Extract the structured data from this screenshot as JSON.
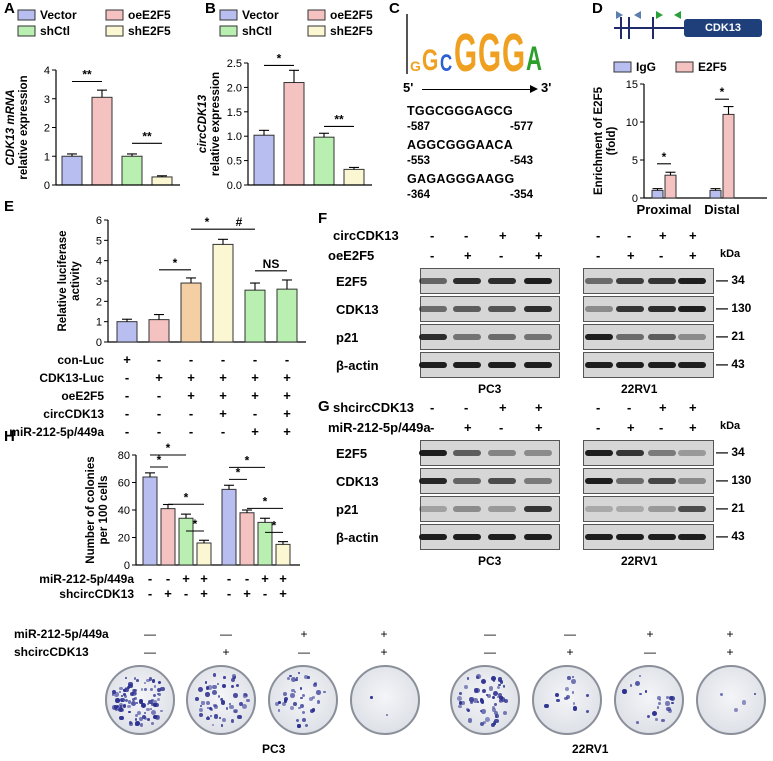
{
  "colors": {
    "vector": "#b8bff0",
    "oe": "#f5c2c2",
    "shctl": "#b9efb0",
    "she2f5": "#fbf7d2",
    "igg": "#b8bff0",
    "e2f5": "#f5c2c2",
    "pale": "#fbf7d2"
  },
  "panels": {
    "a": "A",
    "b": "B",
    "c": "C",
    "d": "D",
    "e": "E",
    "f": "F",
    "g": "G",
    "h": "H"
  },
  "legendAB": [
    "Vector",
    "oeE2F5",
    "shCtl",
    "shE2F5"
  ],
  "chart_data": [
    {
      "id": "A",
      "type": "bar",
      "ylabel": "CDK13 mRNA relative expression",
      "ylabel1": "CDK13 mRNA",
      "ylabel2": "relative expression",
      "categories": [
        "Vector",
        "oeE2F5",
        "shCtl",
        "shE2F5"
      ],
      "values": [
        1.0,
        3.05,
        1.0,
        0.28
      ],
      "errors": [
        0.08,
        0.25,
        0.08,
        0.04
      ],
      "ylim": [
        0,
        4
      ],
      "yticks": [
        "0",
        "1",
        "2",
        "3",
        "4"
      ],
      "sig": [
        "**",
        "**"
      ]
    },
    {
      "id": "B",
      "type": "bar",
      "ylabel": "circCDK13 relative expression",
      "ylabel1": "circCDK13",
      "ylabel2": "relative expression",
      "categories": [
        "Vector",
        "oeE2F5",
        "shCtl",
        "shE2F5"
      ],
      "values": [
        1.02,
        2.1,
        0.98,
        0.32
      ],
      "errors": [
        0.1,
        0.25,
        0.08,
        0.04
      ],
      "ylim": [
        0,
        2.5
      ],
      "yticks": [
        "0.0",
        "0.5",
        "1.0",
        "1.5",
        "2.0",
        "2.5"
      ],
      "sig": [
        "*",
        "**"
      ]
    },
    {
      "id": "D",
      "type": "bar",
      "ylabel": "Enrichment of E2F5 (fold)",
      "ylabel1": "Enrichment of  E2F5",
      "ylabel2": "(fold)",
      "categories": [
        "Proximal",
        "Distal"
      ],
      "series": [
        {
          "name": "IgG",
          "values": [
            1.0,
            1.0
          ]
        },
        {
          "name": "E2F5",
          "values": [
            3.0,
            11.0
          ]
        }
      ],
      "ylim": [
        0,
        15
      ],
      "yticks": [
        "0",
        "5",
        "10",
        "15"
      ],
      "sig": [
        "*",
        "*"
      ]
    },
    {
      "id": "E",
      "type": "bar",
      "ylabel": "Relative luciferase activity",
      "ylabel1": "Relative luciferase",
      "ylabel2": "activity",
      "values": [
        1.0,
        1.1,
        2.9,
        4.8,
        2.55,
        2.6
      ],
      "errors": [
        0.12,
        0.25,
        0.25,
        0.25,
        0.35,
        0.45
      ],
      "ylim": [
        0,
        6
      ],
      "yticks": [
        "0",
        "1",
        "2",
        "3",
        "4",
        "5",
        "6"
      ],
      "sig": [
        "*",
        "*",
        "#",
        "NS"
      ]
    },
    {
      "id": "H",
      "type": "bar",
      "ylabel": "Number of colonies per 100 cells",
      "ylabel1": "Number of colonies",
      "ylabel2": "per 100 cells",
      "groups": [
        "PC3",
        "22RV1"
      ],
      "values": [
        [
          64,
          41,
          34,
          16
        ],
        [
          55,
          38,
          31,
          15
        ]
      ],
      "errors": [
        [
          3,
          3,
          3,
          2
        ],
        [
          3,
          2,
          3,
          2
        ]
      ],
      "ylim": [
        0,
        80
      ],
      "yticks": [
        "0",
        "20",
        "40",
        "60",
        "80"
      ],
      "sig": "*"
    }
  ],
  "motif": {
    "left": "5'",
    "right": "3'",
    "sites": [
      {
        "seq": "TGGCGGGAGCG",
        "from": "-587",
        "to": "-577"
      },
      {
        "seq": "AGGCGGGAACA",
        "from": "-553",
        "to": "-543"
      },
      {
        "seq": "GAGAGGGAAGG",
        "from": "-364",
        "to": "-354"
      }
    ]
  },
  "gene": {
    "name": "CDK13"
  },
  "legendD": [
    "IgG",
    "E2F5"
  ],
  "tableE": {
    "rows": [
      {
        "label": "con-Luc",
        "marks": [
          "+",
          "-",
          "-",
          "-",
          "-",
          "-"
        ]
      },
      {
        "label": "CDK13-Luc",
        "marks": [
          "-",
          "+",
          "+",
          "+",
          "+",
          "+"
        ]
      },
      {
        "label": "oeE2F5",
        "marks": [
          "-",
          "-",
          "+",
          "+",
          "+",
          "+"
        ]
      },
      {
        "label": "circCDK13",
        "marks": [
          "-",
          "-",
          "-",
          "+",
          "-",
          "+"
        ]
      },
      {
        "label": "miR-212-5p/449a",
        "marks": [
          "-",
          "-",
          "-",
          "-",
          "+",
          "+"
        ]
      }
    ]
  },
  "blotF": {
    "conds": [
      {
        "label": "circCDK13",
        "marks": [
          "-",
          "-",
          "+",
          "+"
        ]
      },
      {
        "label": "oeE2F5",
        "marks": [
          "-",
          "+",
          "-",
          "+"
        ]
      }
    ],
    "proteins": [
      "E2F5",
      "CDK13",
      "p21",
      "β-actin"
    ],
    "kda": [
      "34",
      "130",
      "21",
      "43"
    ],
    "kdaLabel": "kDa",
    "cells": [
      "PC3",
      "22RV1"
    ]
  },
  "blotG": {
    "conds": [
      {
        "label": "shcircCDK13",
        "marks": [
          "-",
          "-",
          "+",
          "+"
        ]
      },
      {
        "label": "miR-212-5p/449a",
        "marks": [
          "-",
          "+",
          "-",
          "+"
        ]
      }
    ],
    "proteins": [
      "E2F5",
      "CDK13",
      "p21",
      "β-actin"
    ],
    "kda": [
      "34",
      "130",
      "21",
      "43"
    ],
    "kdaLabel": "kDa",
    "cells": [
      "PC3",
      "22RV1"
    ]
  },
  "tableH": {
    "rows": [
      {
        "label": "miR-212-5p/449a",
        "marks": [
          "-",
          "-",
          "+",
          "+",
          "-",
          "-",
          "+",
          "+"
        ]
      },
      {
        "label": "shcircCDK13",
        "marks": [
          "-",
          "+",
          "-",
          "+",
          "-",
          "+",
          "-",
          "+"
        ]
      }
    ]
  },
  "colonyRow": {
    "rows": [
      {
        "label": "miR-212-5p/449a",
        "marks": [
          "—",
          "—",
          "+",
          "+",
          "—",
          "—",
          "+",
          "+"
        ]
      },
      {
        "label": "shcircCDK13",
        "marks": [
          "—",
          "+",
          "—",
          "+",
          "—",
          "+",
          "—",
          "+"
        ]
      }
    ],
    "cells": [
      "PC3",
      "22RV1"
    ],
    "density": [
      95,
      55,
      40,
      2,
      60,
      14,
      22,
      4
    ]
  }
}
